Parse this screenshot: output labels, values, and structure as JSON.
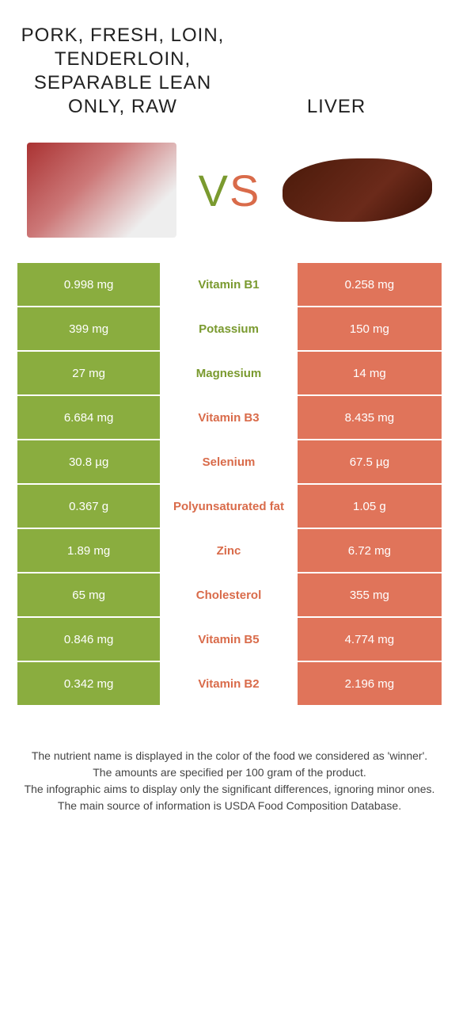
{
  "colors": {
    "green": "#8aad3f",
    "orange": "#e0745a",
    "mid_green": "#7a9a2f",
    "mid_orange": "#d96b4a"
  },
  "header": {
    "left_title": "Pork, fresh, loin, tenderloin, separable lean only, raw",
    "right_title": "Liver",
    "vs_v": "V",
    "vs_s": "S"
  },
  "rows": [
    {
      "left": "0.998 mg",
      "label": "Vitamin B1",
      "right": "0.258 mg",
      "winner": "left"
    },
    {
      "left": "399 mg",
      "label": "Potassium",
      "right": "150 mg",
      "winner": "left"
    },
    {
      "left": "27 mg",
      "label": "Magnesium",
      "right": "14 mg",
      "winner": "left"
    },
    {
      "left": "6.684 mg",
      "label": "Vitamin B3",
      "right": "8.435 mg",
      "winner": "right"
    },
    {
      "left": "30.8 µg",
      "label": "Selenium",
      "right": "67.5 µg",
      "winner": "right"
    },
    {
      "left": "0.367 g",
      "label": "Polyunsaturated fat",
      "right": "1.05 g",
      "winner": "right"
    },
    {
      "left": "1.89 mg",
      "label": "Zinc",
      "right": "6.72 mg",
      "winner": "right"
    },
    {
      "left": "65 mg",
      "label": "Cholesterol",
      "right": "355 mg",
      "winner": "right"
    },
    {
      "left": "0.846 mg",
      "label": "Vitamin B5",
      "right": "4.774 mg",
      "winner": "right"
    },
    {
      "left": "0.342 mg",
      "label": "Vitamin B2",
      "right": "2.196 mg",
      "winner": "right"
    }
  ],
  "footer": {
    "line1": "The nutrient name is displayed in the color of the food we considered as 'winner'.",
    "line2": "The amounts are specified per 100 gram of the product.",
    "line3": "The infographic aims to display only the significant differences, ignoring minor ones.",
    "line4": "The main source of information is USDA Food Composition Database."
  }
}
